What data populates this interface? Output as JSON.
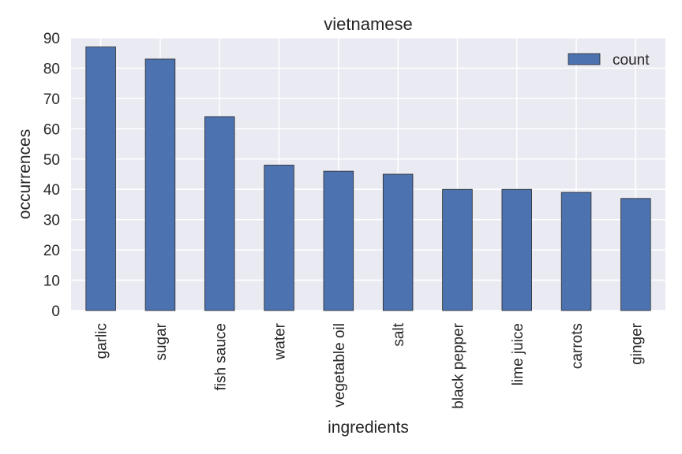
{
  "chart_data": {
    "type": "bar",
    "title": "vietnamese",
    "xlabel": "ingredients",
    "ylabel": "occurrences",
    "categories": [
      "garlic",
      "sugar",
      "fish sauce",
      "water",
      "vegetable oil",
      "salt",
      "black pepper",
      "lime juice",
      "carrots",
      "ginger"
    ],
    "series": [
      {
        "name": "count",
        "values": [
          87,
          83,
          64,
          48,
          46,
          45,
          40,
          40,
          39,
          37
        ]
      }
    ],
    "ylim": [
      0,
      90
    ],
    "yticks": [
      "0",
      "10",
      "20",
      "30",
      "40",
      "50",
      "60",
      "70",
      "80",
      "90"
    ],
    "grid": true,
    "legend_position": "top-right",
    "colors": {
      "bar": "#4c72b0",
      "bar_edge": "#2a2a2a",
      "plot_background": "#eaeaf2",
      "grid": "#ffffff"
    }
  }
}
